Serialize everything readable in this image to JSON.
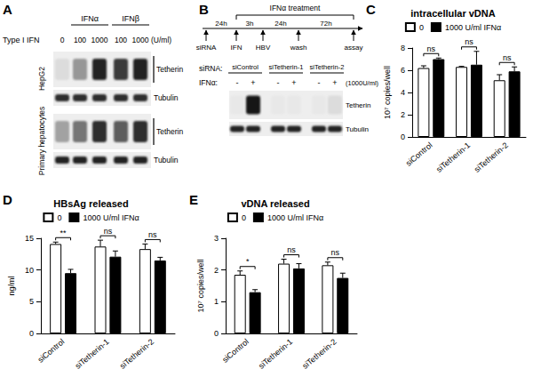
{
  "panel_A": {
    "letter": "A",
    "groups_label": "Type I IFN",
    "groups": [
      "IFNα",
      "IFNβ"
    ],
    "lanes": [
      "0",
      "100",
      "1000",
      "100",
      "1000"
    ],
    "unit": "(U/ml)",
    "blots": [
      {
        "cell": "HepG2",
        "rows": [
          {
            "label": "Tetherin",
            "bands": [
              0.05,
              0.35,
              0.85,
              0.75,
              0.85
            ]
          },
          {
            "label": "Tubulin",
            "bands": [
              0.8,
              0.8,
              0.8,
              0.8,
              0.8
            ]
          }
        ]
      },
      {
        "cell": "Primary hepatocytes",
        "rows": [
          {
            "label": "Tetherin",
            "bands": [
              0.3,
              0.5,
              0.8,
              0.6,
              0.8
            ]
          },
          {
            "label": "Tubulin",
            "bands": [
              0.85,
              0.85,
              0.85,
              0.85,
              0.85
            ]
          }
        ]
      }
    ]
  },
  "panel_B": {
    "letter": "B",
    "timeline": {
      "treatment": "IFNα treatment",
      "events": [
        "siRNA",
        "IFN",
        "HBV",
        "wash",
        "assay"
      ],
      "intervals": [
        "24h",
        "3h",
        "24h",
        "72h"
      ]
    },
    "sirna_label": "siRNA:",
    "sirnas": [
      "siControl",
      "siTetherin-1",
      "siTetherin-2"
    ],
    "ifn_label": "IFNα:",
    "ifn": [
      "-",
      "+",
      "-",
      "+",
      "-",
      "+"
    ],
    "unit": "(1000U/ml)",
    "rows": [
      {
        "label": "Tetherin",
        "bands": [
          0.0,
          0.9,
          0.0,
          0.0,
          0.0,
          0.05
        ]
      },
      {
        "label": "Tubulin",
        "bands": [
          0.85,
          0.85,
          0.85,
          0.85,
          0.85,
          0.85
        ]
      }
    ]
  },
  "chart_data": [
    {
      "letter": "C",
      "type": "bar",
      "title": "intracellular vDNA",
      "y_label": "10⁷ copies/well",
      "categories": [
        "siControl",
        "siTetherin-1",
        "siTetherin-2"
      ],
      "series": [
        {
          "name": "0",
          "color": "#ffffff",
          "values": [
            6.2,
            6.3,
            5.1
          ],
          "errors": [
            0.2,
            0.05,
            0.5
          ]
        },
        {
          "name": "1000 U/ml IFNα",
          "color": "#000000",
          "values": [
            7.0,
            6.5,
            5.9
          ],
          "errors": [
            0.1,
            1.2,
            0.4
          ]
        }
      ],
      "ylim": [
        0,
        8
      ],
      "yticks": [
        0,
        2,
        4,
        6,
        8
      ],
      "significance": [
        "ns",
        "ns",
        "ns"
      ],
      "legend": "top",
      "grid": false
    },
    {
      "letter": "D",
      "type": "bar",
      "title": "HBsAg released",
      "y_label": "ng/ml",
      "categories": [
        "siControl",
        "siTetherin-1",
        "siTetherin-2"
      ],
      "series": [
        {
          "name": "0",
          "color": "#ffffff",
          "values": [
            14.1,
            13.7,
            13.3
          ],
          "errors": [
            0.3,
            1.0,
            0.8
          ]
        },
        {
          "name": "1000 U/ml IFNα",
          "color": "#000000",
          "values": [
            9.5,
            12.1,
            11.5
          ],
          "errors": [
            0.6,
            0.9,
            0.5
          ]
        }
      ],
      "ylim": [
        0,
        15
      ],
      "yticks": [
        0,
        5,
        10,
        15
      ],
      "significance": [
        "**",
        "ns",
        "ns"
      ],
      "legend": "top",
      "grid": false
    },
    {
      "letter": "E",
      "type": "bar",
      "title": "vDNA released",
      "y_label": "10⁷ copies/well",
      "categories": [
        "siControl",
        "siTetherin-1",
        "siTetherin-2"
      ],
      "series": [
        {
          "name": "0",
          "color": "#ffffff",
          "values": [
            1.85,
            2.2,
            2.15
          ],
          "errors": [
            0.12,
            0.14,
            0.1
          ]
        },
        {
          "name": "1000 U/ml IFNα",
          "color": "#000000",
          "values": [
            1.3,
            2.05,
            1.75
          ],
          "errors": [
            0.08,
            0.15,
            0.15
          ]
        }
      ],
      "ylim": [
        0,
        3
      ],
      "yticks": [
        0,
        1,
        2,
        3
      ],
      "significance": [
        "*",
        "ns",
        "ns"
      ],
      "legend": "top",
      "grid": false
    }
  ]
}
